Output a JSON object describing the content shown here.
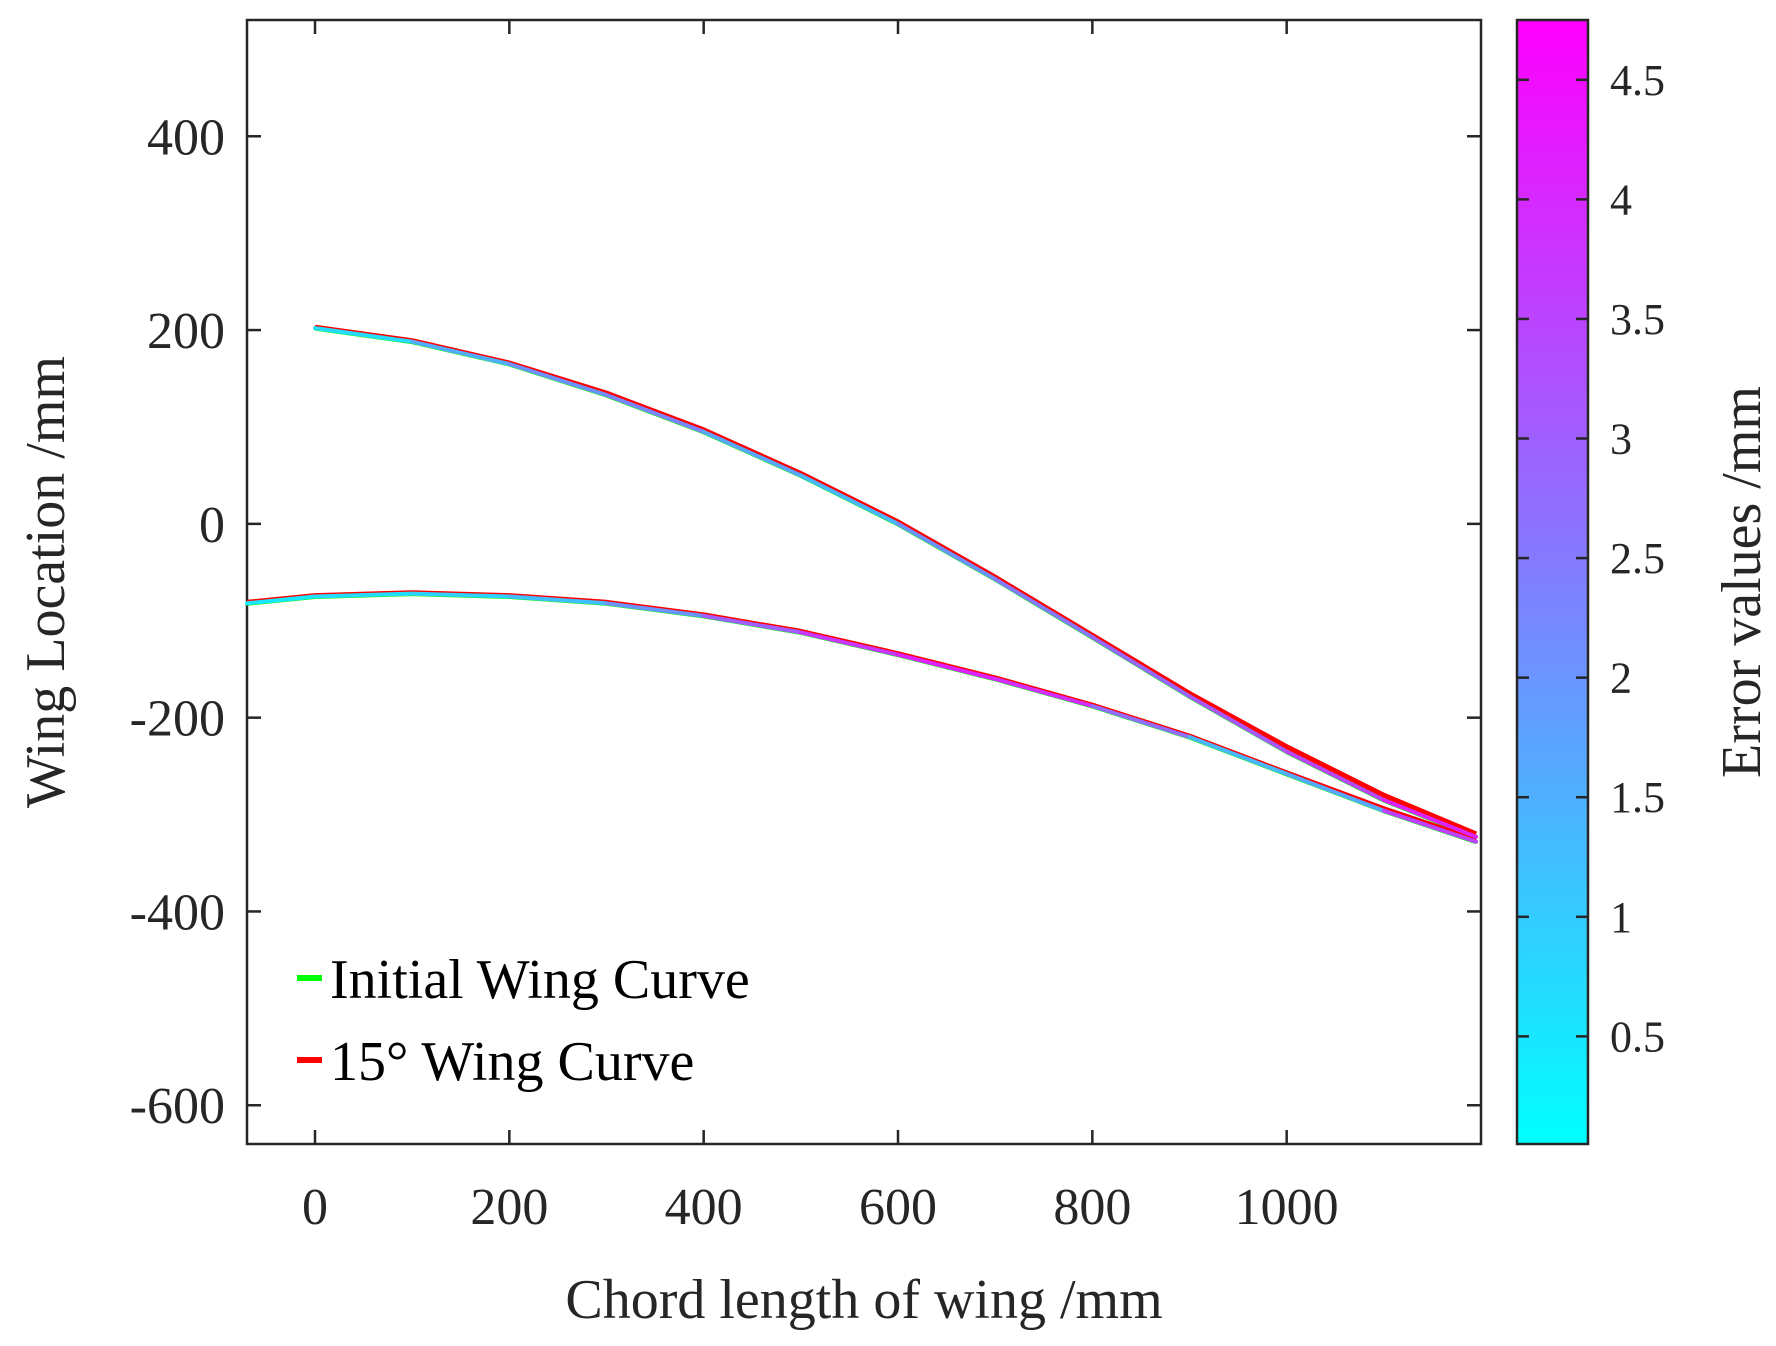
{
  "chart_data": {
    "type": "line",
    "title": "",
    "xlabel": "Chord length of wing /mm",
    "ylabel": "Wing Location /mm",
    "xlim": [
      -70,
      1200
    ],
    "ylim": [
      -640,
      520
    ],
    "xticks": [
      0,
      200,
      400,
      600,
      800,
      1000
    ],
    "xtick_labels": [
      "0",
      "200",
      "400",
      "600",
      "800",
      "1000"
    ],
    "yticks": [
      400,
      200,
      0,
      -200,
      -400,
      -600
    ],
    "ytick_labels": [
      "400",
      "200",
      "0",
      "-200",
      "-400",
      "-600"
    ],
    "grid": false,
    "series": [
      {
        "name": "Initial Wing Curve",
        "color": "#00ff00",
        "upper_surface": {
          "x": [
            0,
            100,
            200,
            300,
            400,
            500,
            600,
            700,
            800,
            900,
            1000,
            1100,
            1195
          ],
          "y": [
            202,
            188,
            165,
            133,
            95,
            50,
            0,
            -57,
            -117,
            -178,
            -235,
            -285,
            -323
          ]
        },
        "lower_surface": {
          "x": [
            -70,
            0,
            100,
            200,
            300,
            400,
            500,
            600,
            700,
            800,
            900,
            1000,
            1100,
            1195
          ],
          "y": [
            -82,
            -75,
            -72,
            -75,
            -82,
            -95,
            -112,
            -135,
            -160,
            -188,
            -220,
            -258,
            -296,
            -328
          ]
        }
      },
      {
        "name": "15° Wing Curve",
        "color": "#ff0000",
        "upper_surface": {
          "x": [
            0,
            100,
            200,
            300,
            400,
            500,
            600,
            700,
            800,
            900,
            1000,
            1100,
            1195
          ],
          "y": [
            203,
            189,
            166,
            135,
            97,
            52,
            2,
            -55,
            -115,
            -175,
            -230,
            -280,
            -320
          ]
        },
        "lower_surface": {
          "x": [
            -70,
            0,
            100,
            200,
            300,
            400,
            500,
            600,
            700,
            800,
            900,
            1000,
            1100,
            1195
          ],
          "y": [
            -81,
            -74,
            -71,
            -74,
            -81,
            -94,
            -111,
            -134,
            -159,
            -187,
            -219,
            -257,
            -294,
            -326
          ]
        }
      }
    ],
    "error_values": {
      "upper_surface": [
        0.2,
        1.2,
        1.9,
        2.2,
        2.4,
        1.0,
        1.8,
        2.3,
        2.7,
        3.0,
        3.3,
        3.7,
        4.5
      ],
      "lower_surface": [
        0.4,
        0.6,
        0.8,
        1.0,
        1.5,
        2.5,
        3.5,
        4.0,
        4.3,
        3.5,
        2.0,
        0.8,
        2.5,
        4.6
      ]
    },
    "colorbar": {
      "label": "Error values /mm",
      "range": [
        0.05,
        4.75
      ],
      "ticks": [
        0.5,
        1,
        1.5,
        2,
        2.5,
        3,
        3.5,
        4,
        4.5
      ],
      "tick_labels": [
        "0.5",
        "1",
        "1.5",
        "2",
        "2.5",
        "3",
        "3.5",
        "4",
        "4.5"
      ],
      "colormap": "cool",
      "color_low": "#00ffff",
      "color_high": "#ff00ff"
    },
    "legend": {
      "location": "bottom-left",
      "entries": [
        "Initial Wing Curve",
        "15° Wing Curve"
      ]
    }
  }
}
